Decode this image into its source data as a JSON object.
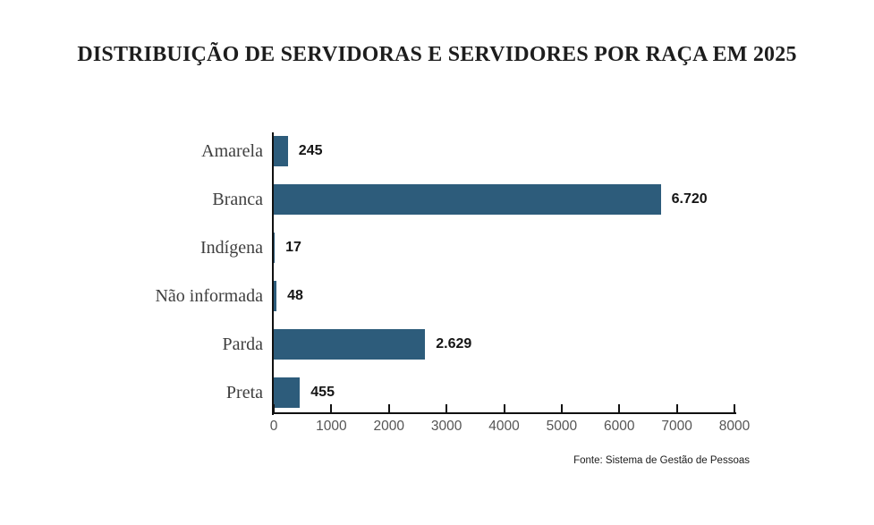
{
  "chart_data": {
    "type": "bar",
    "orientation": "horizontal",
    "title": "DISTRIBUIÇÃO DE SERVIDORAS E SERVIDORES POR RAÇA EM 2025",
    "categories": [
      "Amarela",
      "Branca",
      "Indígena",
      "Não informada",
      "Parda",
      "Preta"
    ],
    "values": [
      245,
      6720,
      17,
      48,
      2629,
      455
    ],
    "value_labels": [
      "245",
      "6.720",
      "17",
      "48",
      "2.629",
      "455"
    ],
    "xlabel": "",
    "ylabel": "",
    "xlim": [
      0,
      8000
    ],
    "xticks": [
      0,
      1000,
      2000,
      3000,
      4000,
      5000,
      6000,
      7000,
      8000
    ],
    "xtick_labels": [
      "0",
      "1000",
      "2000",
      "3000",
      "4000",
      "5000",
      "6000",
      "7000",
      "8000"
    ],
    "grid": false,
    "legend": false,
    "source": "Fonte: Sistema de Gestão de Pessoas"
  },
  "colors": {
    "bar": "#2d5c7b",
    "axis": "#111111",
    "title_text": "#1d1d1d",
    "category_text": "#3f3f3f",
    "value_text": "#151515",
    "tick_text": "#555555",
    "background": "#ffffff"
  }
}
